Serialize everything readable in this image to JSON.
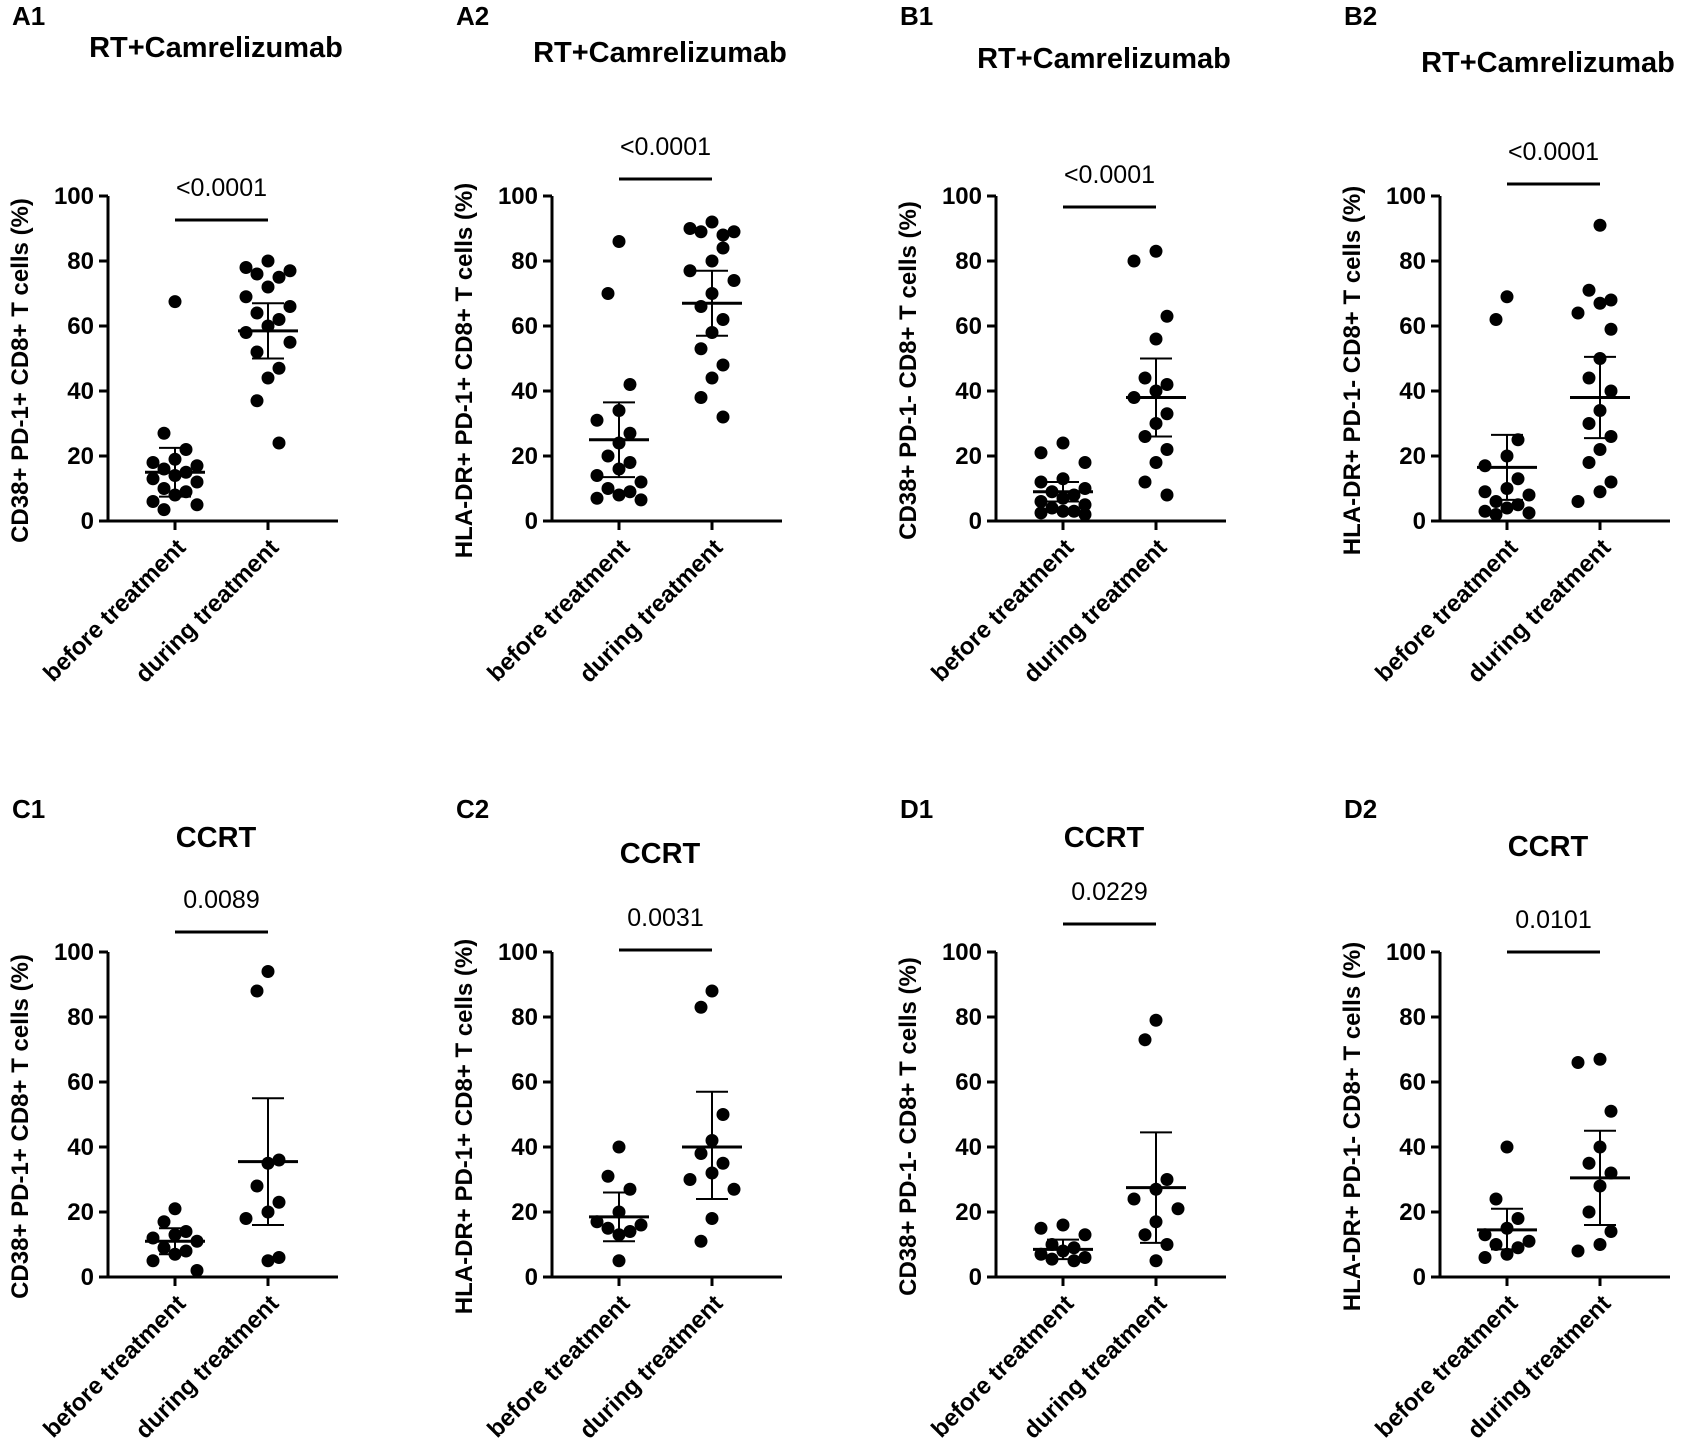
{
  "chart_data": [
    {
      "type": "scatter",
      "panel": "A1",
      "title": "RT+Camrelizumab",
      "ylabel": "CD38+ PD-1+ CD8+ T cells (%)",
      "categories": [
        "before treatment",
        "during treatment"
      ],
      "ylim": [
        0,
        100
      ],
      "yticks": [
        0,
        20,
        40,
        60,
        80,
        100
      ],
      "p_value": "<0.0001",
      "series": [
        {
          "name": "before treatment",
          "values": [
            67.5,
            27,
            22,
            19,
            18,
            17,
            16,
            15,
            14,
            13,
            12,
            10,
            9,
            8,
            6,
            5,
            3.5
          ],
          "mean": 15,
          "sd_low": 7.5,
          "sd_high": 22.5
        },
        {
          "name": "during treatment",
          "values": [
            80,
            78,
            77,
            76,
            75,
            72,
            69,
            66,
            64,
            62,
            60,
            58,
            55,
            52,
            47,
            44,
            37,
            24
          ],
          "mean": 58.5,
          "sd_low": 50,
          "sd_high": 67
        }
      ]
    },
    {
      "type": "scatter",
      "panel": "A2",
      "title": "RT+Camrelizumab",
      "ylabel": "HLA-DR+ PD-1+ CD8+ T cells (%)",
      "categories": [
        "before treatment",
        "during treatment"
      ],
      "ylim": [
        0,
        100
      ],
      "yticks": [
        0,
        20,
        40,
        60,
        80,
        100
      ],
      "p_value": "<0.0001",
      "series": [
        {
          "name": "before treatment",
          "values": [
            86,
            70,
            42,
            34,
            31,
            27,
            24,
            20,
            18,
            16,
            14,
            12,
            10,
            9,
            8,
            7,
            6.5
          ],
          "mean": 25,
          "sd_low": 13.5,
          "sd_high": 36.5
        },
        {
          "name": "during treatment",
          "values": [
            92,
            90,
            89,
            89,
            88,
            84,
            80,
            77,
            74,
            70,
            66,
            62,
            58,
            53,
            48,
            44,
            38,
            32
          ],
          "mean": 67,
          "sd_low": 57,
          "sd_high": 77
        }
      ]
    },
    {
      "type": "scatter",
      "panel": "B1",
      "title": "RT+Camrelizumab",
      "ylabel": "CD38+ PD-1- CD8+ T cells (%)",
      "categories": [
        "before treatment",
        "during treatment"
      ],
      "ylim": [
        0,
        100
      ],
      "yticks": [
        0,
        20,
        40,
        60,
        80,
        100
      ],
      "p_value": "<0.0001",
      "series": [
        {
          "name": "before treatment",
          "values": [
            24,
            21,
            18,
            13,
            12,
            10,
            9,
            8,
            7,
            6,
            5,
            4,
            3,
            3,
            2.5,
            2
          ],
          "mean": 9,
          "sd_low": 6,
          "sd_high": 12
        },
        {
          "name": "during treatment",
          "values": [
            83,
            80,
            63,
            56,
            44,
            42,
            40,
            38,
            33,
            30,
            26,
            22,
            18,
            12,
            8
          ],
          "mean": 38,
          "sd_low": 26,
          "sd_high": 50
        }
      ]
    },
    {
      "type": "scatter",
      "panel": "B2",
      "title": "RT+Camrelizumab",
      "ylabel": "HLA-DR+ PD-1- CD8+ T cells (%)",
      "categories": [
        "before treatment",
        "during treatment"
      ],
      "ylim": [
        0,
        100
      ],
      "yticks": [
        0,
        20,
        40,
        60,
        80,
        100
      ],
      "p_value": "<0.0001",
      "series": [
        {
          "name": "before treatment",
          "values": [
            69,
            62,
            25,
            20,
            17,
            13,
            10,
            9,
            8,
            6,
            5,
            4,
            3,
            2.5,
            2
          ],
          "mean": 16.5,
          "sd_low": 6.5,
          "sd_high": 26.5
        },
        {
          "name": "during treatment",
          "values": [
            91,
            71,
            68,
            67,
            64,
            59,
            50,
            44,
            40,
            34,
            30,
            26,
            22,
            18,
            12,
            9,
            6
          ],
          "mean": 38,
          "sd_low": 25.5,
          "sd_high": 50.5
        }
      ]
    },
    {
      "type": "scatter",
      "panel": "C1",
      "title": "CCRT",
      "ylabel": "CD38+ PD-1+ CD8+ T cells (%)",
      "categories": [
        "before treatment",
        "during treatment"
      ],
      "ylim": [
        0,
        100
      ],
      "yticks": [
        0,
        20,
        40,
        60,
        80,
        100
      ],
      "p_value": "0.0089",
      "series": [
        {
          "name": "before treatment",
          "values": [
            21,
            17,
            14,
            13,
            12,
            11,
            9,
            8,
            7,
            5,
            2
          ],
          "mean": 11,
          "sd_low": 7,
          "sd_high": 15
        },
        {
          "name": "during treatment",
          "values": [
            94,
            88,
            36,
            35,
            28,
            23,
            20,
            18,
            6,
            5
          ],
          "mean": 35.5,
          "sd_low": 16,
          "sd_high": 55
        }
      ]
    },
    {
      "type": "scatter",
      "panel": "C2",
      "title": "CCRT",
      "ylabel": "HLA-DR+ PD-1+ CD8+ T cells (%)",
      "categories": [
        "before treatment",
        "during treatment"
      ],
      "ylim": [
        0,
        100
      ],
      "yticks": [
        0,
        20,
        40,
        60,
        80,
        100
      ],
      "p_value": "0.0031",
      "series": [
        {
          "name": "before treatment",
          "values": [
            40,
            31,
            27,
            20,
            17,
            16,
            15,
            14,
            13,
            5
          ],
          "mean": 18.5,
          "sd_low": 11,
          "sd_high": 26
        },
        {
          "name": "during treatment",
          "values": [
            88,
            83,
            50,
            42,
            38,
            35,
            32,
            30,
            27,
            18,
            11
          ],
          "mean": 40,
          "sd_low": 24,
          "sd_high": 57
        }
      ]
    },
    {
      "type": "scatter",
      "panel": "D1",
      "title": "CCRT",
      "ylabel": "CD38+ PD-1- CD8+ T cells (%)",
      "categories": [
        "before treatment",
        "during treatment"
      ],
      "ylim": [
        0,
        100
      ],
      "yticks": [
        0,
        20,
        40,
        60,
        80,
        100
      ],
      "p_value": "0.0229",
      "series": [
        {
          "name": "before treatment",
          "values": [
            16,
            15,
            13,
            10,
            9,
            8,
            7,
            6,
            5.5,
            5
          ],
          "mean": 8.5,
          "sd_low": 5.5,
          "sd_high": 11.5
        },
        {
          "name": "during treatment",
          "values": [
            79,
            73,
            30,
            27,
            24,
            21,
            17,
            13,
            10,
            5
          ],
          "mean": 27.5,
          "sd_low": 10.5,
          "sd_high": 44.5
        }
      ]
    },
    {
      "type": "scatter",
      "panel": "D2",
      "title": "CCRT",
      "ylabel": "HLA-DR+ PD-1- CD8+ T cells (%)",
      "categories": [
        "before treatment",
        "during treatment"
      ],
      "ylim": [
        0,
        100
      ],
      "yticks": [
        0,
        20,
        40,
        60,
        80,
        100
      ],
      "p_value": "0.0101",
      "series": [
        {
          "name": "before treatment",
          "values": [
            40,
            24,
            18,
            15,
            13,
            11,
            10,
            9,
            7,
            6
          ],
          "mean": 14.5,
          "sd_low": 8.5,
          "sd_high": 21
        },
        {
          "name": "during treatment",
          "values": [
            67,
            66,
            51,
            40,
            35,
            32,
            28,
            20,
            14,
            10,
            8
          ],
          "mean": 30.5,
          "sd_low": 16,
          "sd_high": 45
        }
      ]
    }
  ]
}
